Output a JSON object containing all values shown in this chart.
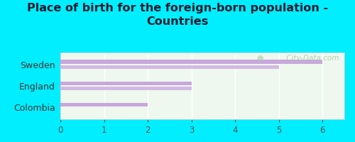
{
  "title_line1": "Place of birth for the foreign-born population -",
  "title_line2": "Countries",
  "categories": [
    "Sweden",
    "England",
    "Colombia"
  ],
  "bar1_values": [
    6,
    3,
    2
  ],
  "bar2_values": [
    5,
    3,
    0
  ],
  "bar_color1": "#c8a8dc",
  "bar_color2": "#d4b8e4",
  "bg_color": "#00eeff",
  "plot_bg": "#eef8ee",
  "border_color": "#cccccc",
  "watermark": " City-Data.com",
  "watermark_color": "#aaccaa",
  "xlim": [
    0,
    6.5
  ],
  "xticks": [
    0,
    1,
    2,
    3,
    4,
    5,
    6
  ],
  "title_fontsize": 11.5,
  "label_fontsize": 9,
  "tick_fontsize": 8.5,
  "bar_height": 0.18,
  "bar_gap": 0.06
}
